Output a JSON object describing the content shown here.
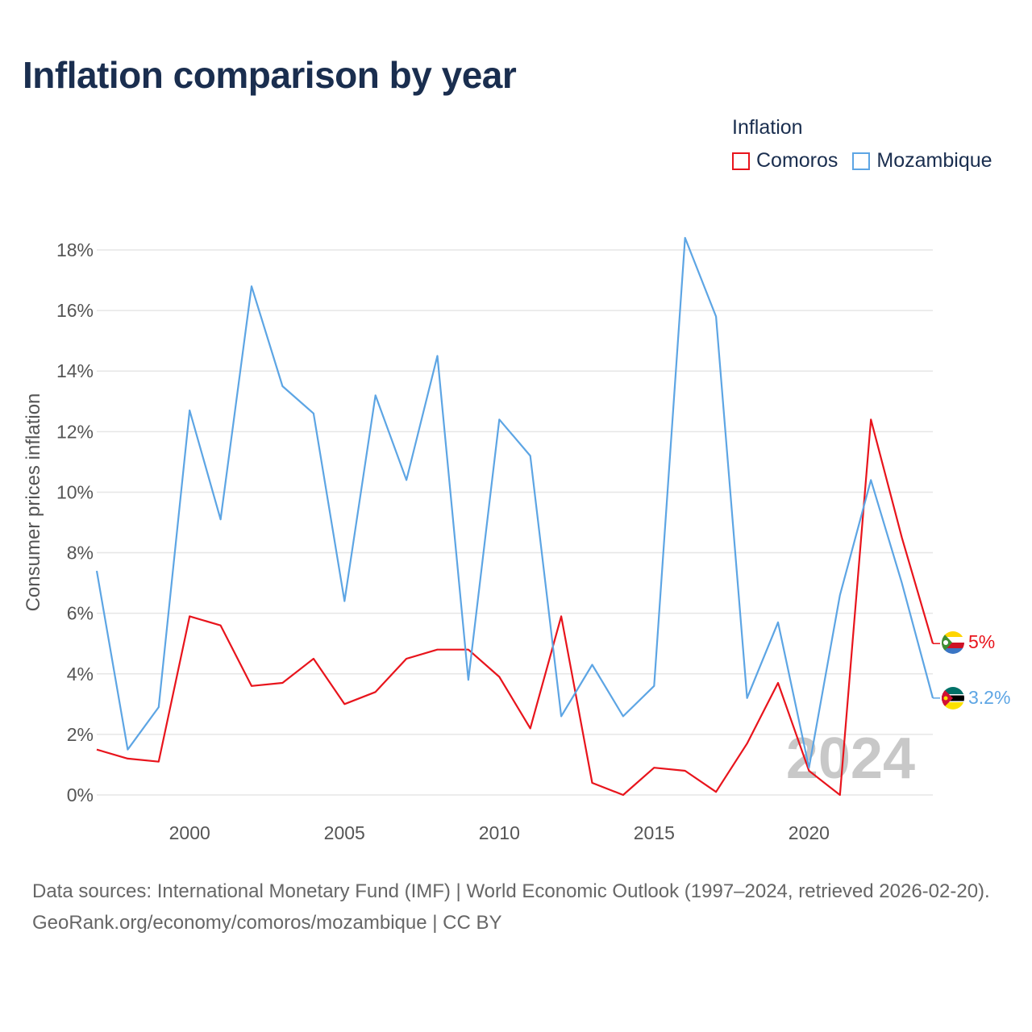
{
  "title": "Inflation comparison by year",
  "legend": {
    "title": "Inflation",
    "items": [
      {
        "label": "Comoros",
        "color": "#e8141c"
      },
      {
        "label": "Mozambique",
        "color": "#5da5e4"
      }
    ]
  },
  "chart_data": {
    "type": "line",
    "title": "Inflation comparison by year",
    "xlabel": "",
    "ylabel": "Consumer prices inflation",
    "x": [
      1997,
      1998,
      1999,
      2000,
      2001,
      2002,
      2003,
      2004,
      2005,
      2006,
      2007,
      2008,
      2009,
      2010,
      2011,
      2012,
      2013,
      2014,
      2015,
      2016,
      2017,
      2018,
      2019,
      2020,
      2021,
      2022,
      2023,
      2024
    ],
    "xlim": [
      1997,
      2024
    ],
    "xticks": [
      2000,
      2005,
      2010,
      2015,
      2020
    ],
    "ylim": [
      0,
      18
    ],
    "yticks": [
      0,
      2,
      4,
      6,
      8,
      10,
      12,
      14,
      16,
      18
    ],
    "ytick_labels": [
      "0%",
      "2%",
      "4%",
      "6%",
      "8%",
      "10%",
      "12%",
      "14%",
      "16%",
      "18%"
    ],
    "grid": true,
    "series": [
      {
        "name": "Comoros",
        "color": "#e8141c",
        "values": [
          1.5,
          1.2,
          1.1,
          5.9,
          5.6,
          3.6,
          3.7,
          4.5,
          3.0,
          3.4,
          4.5,
          4.8,
          4.8,
          3.9,
          2.2,
          5.9,
          0.4,
          0.0,
          0.9,
          0.8,
          0.1,
          1.7,
          3.7,
          0.8,
          0.0,
          12.4,
          8.5,
          5.0
        ],
        "end_label": "5%"
      },
      {
        "name": "Mozambique",
        "color": "#5da5e4",
        "values": [
          7.4,
          1.5,
          2.9,
          12.7,
          9.1,
          16.8,
          13.5,
          12.6,
          6.4,
          13.2,
          10.4,
          14.5,
          3.8,
          12.4,
          11.2,
          2.6,
          4.3,
          2.6,
          3.6,
          18.4,
          15.8,
          3.2,
          5.7,
          0.9,
          6.6,
          10.4,
          7.0,
          3.2
        ],
        "end_label": "3.2%"
      }
    ],
    "year_watermark": "2024"
  },
  "footer": {
    "source": "Data sources: International Monetary Fund (IMF) | World Economic Outlook (1997–2024, retrieved 2026-02-20).",
    "link": "GeoRank.org/economy/comoros/mozambique | CC BY"
  }
}
